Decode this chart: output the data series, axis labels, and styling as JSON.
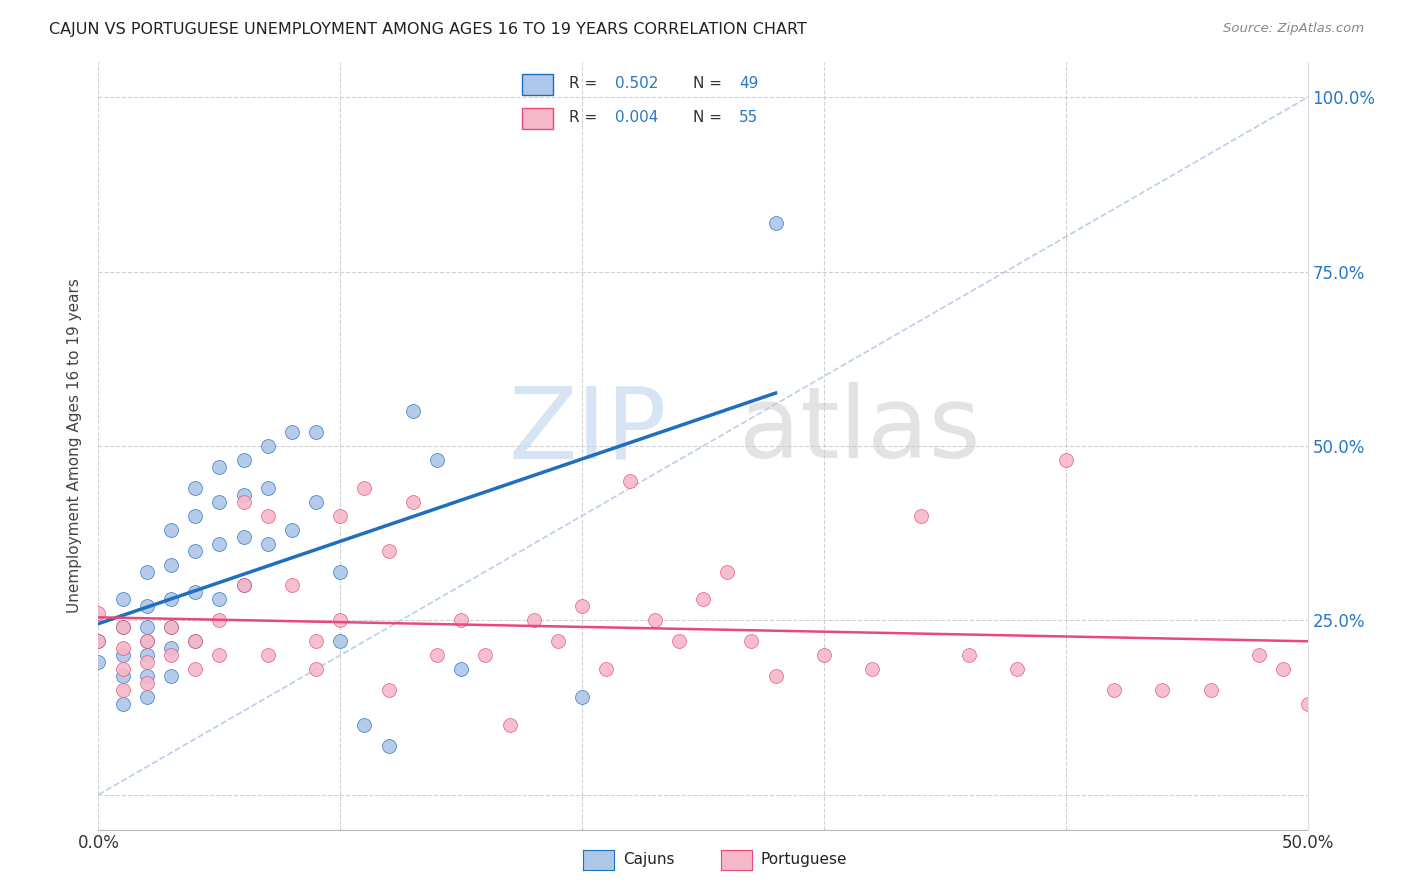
{
  "title": "CAJUN VS PORTUGUESE UNEMPLOYMENT AMONG AGES 16 TO 19 YEARS CORRELATION CHART",
  "source": "Source: ZipAtlas.com",
  "ylabel": "Unemployment Among Ages 16 to 19 years",
  "xlim": [
    0.0,
    0.5
  ],
  "ylim": [
    0.0,
    1.05
  ],
  "cajun_R": 0.502,
  "cajun_N": 49,
  "portuguese_R": 0.004,
  "portuguese_N": 55,
  "cajun_color": "#aec6e8",
  "cajun_line_color": "#1f6fbf",
  "portuguese_color": "#f5b8c8",
  "portuguese_line_color": "#e8497a",
  "diagonal_color": "#aec6e8",
  "background_color": "#ffffff",
  "grid_color": "#cccccc",
  "cajun_x": [
    0.0,
    0.0,
    0.01,
    0.01,
    0.01,
    0.01,
    0.01,
    0.02,
    0.02,
    0.02,
    0.02,
    0.02,
    0.02,
    0.02,
    0.03,
    0.03,
    0.03,
    0.03,
    0.03,
    0.03,
    0.04,
    0.04,
    0.04,
    0.04,
    0.04,
    0.05,
    0.05,
    0.05,
    0.05,
    0.06,
    0.06,
    0.06,
    0.06,
    0.07,
    0.07,
    0.07,
    0.08,
    0.08,
    0.09,
    0.09,
    0.1,
    0.1,
    0.11,
    0.12,
    0.13,
    0.14,
    0.15,
    0.2,
    0.28
  ],
  "cajun_y": [
    0.22,
    0.19,
    0.28,
    0.24,
    0.2,
    0.17,
    0.13,
    0.32,
    0.27,
    0.24,
    0.22,
    0.2,
    0.17,
    0.14,
    0.38,
    0.33,
    0.28,
    0.24,
    0.21,
    0.17,
    0.44,
    0.4,
    0.35,
    0.29,
    0.22,
    0.47,
    0.42,
    0.36,
    0.28,
    0.48,
    0.43,
    0.37,
    0.3,
    0.5,
    0.44,
    0.36,
    0.52,
    0.38,
    0.52,
    0.42,
    0.32,
    0.22,
    0.1,
    0.07,
    0.55,
    0.48,
    0.18,
    0.14,
    0.82
  ],
  "portuguese_x": [
    0.0,
    0.0,
    0.01,
    0.01,
    0.01,
    0.01,
    0.02,
    0.02,
    0.02,
    0.03,
    0.03,
    0.04,
    0.04,
    0.05,
    0.05,
    0.06,
    0.06,
    0.07,
    0.07,
    0.08,
    0.09,
    0.09,
    0.1,
    0.1,
    0.11,
    0.12,
    0.12,
    0.13,
    0.14,
    0.15,
    0.16,
    0.17,
    0.18,
    0.19,
    0.2,
    0.21,
    0.22,
    0.23,
    0.24,
    0.25,
    0.26,
    0.27,
    0.28,
    0.3,
    0.32,
    0.34,
    0.36,
    0.38,
    0.4,
    0.42,
    0.44,
    0.46,
    0.48,
    0.49,
    0.5
  ],
  "portuguese_y": [
    0.26,
    0.22,
    0.24,
    0.21,
    0.18,
    0.15,
    0.22,
    0.19,
    0.16,
    0.24,
    0.2,
    0.22,
    0.18,
    0.25,
    0.2,
    0.42,
    0.3,
    0.2,
    0.4,
    0.3,
    0.22,
    0.18,
    0.4,
    0.25,
    0.44,
    0.35,
    0.15,
    0.42,
    0.2,
    0.25,
    0.2,
    0.1,
    0.25,
    0.22,
    0.27,
    0.18,
    0.45,
    0.25,
    0.22,
    0.28,
    0.32,
    0.22,
    0.17,
    0.2,
    0.18,
    0.4,
    0.2,
    0.18,
    0.48,
    0.15,
    0.15,
    0.15,
    0.2,
    0.18,
    0.13
  ],
  "watermark_zip": "ZIP",
  "watermark_atlas": "atlas"
}
